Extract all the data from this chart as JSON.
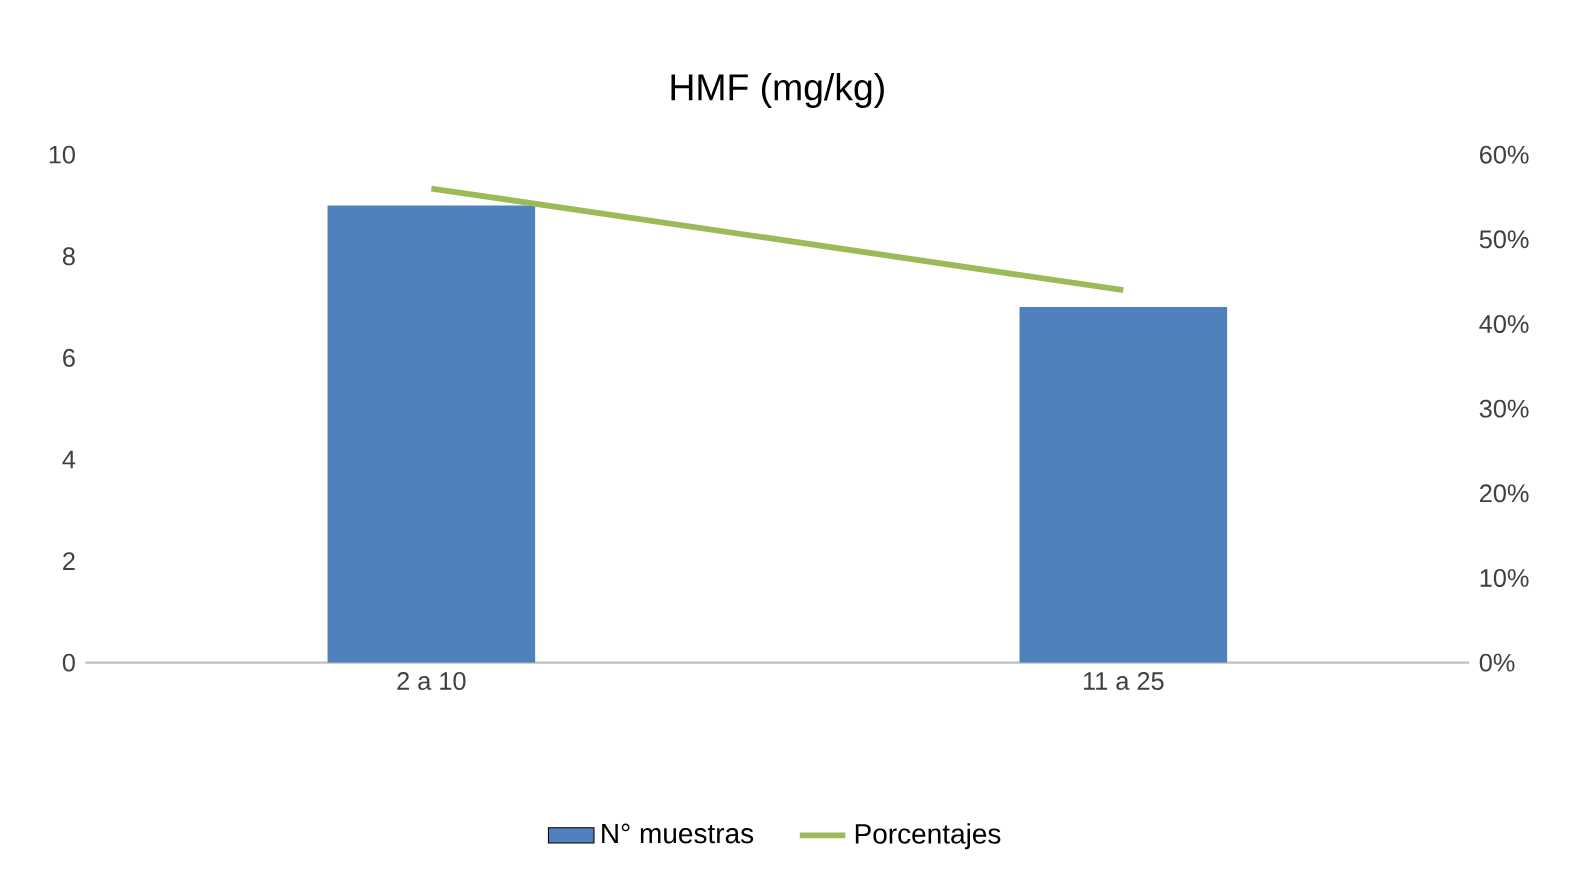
{
  "chart_data": {
    "type": "bar",
    "title": "HMF (mg/kg)",
    "categories": [
      "2 a 10",
      "11 a 25"
    ],
    "series": [
      {
        "name": "N° muestras",
        "color": "#4f81bd",
        "values": [
          9,
          7
        ]
      },
      {
        "name": "Porcentajes",
        "type": "line",
        "axis": "y2",
        "color": "#9bbb59",
        "values": [
          56,
          44
        ]
      }
    ],
    "ylim": [
      0,
      10
    ],
    "yticks": [
      0,
      2,
      4,
      6,
      8,
      10
    ],
    "y2lim": [
      0,
      60
    ],
    "y2ticks": [
      {
        "value": 0,
        "label": "0%"
      },
      {
        "value": 10,
        "label": "10%"
      },
      {
        "value": 20,
        "label": "20%"
      },
      {
        "value": 30,
        "label": "30%"
      },
      {
        "value": 40,
        "label": "40%"
      },
      {
        "value": 50,
        "label": "50%"
      },
      {
        "value": 60,
        "label": "60%"
      }
    ],
    "legend": "bottom"
  }
}
